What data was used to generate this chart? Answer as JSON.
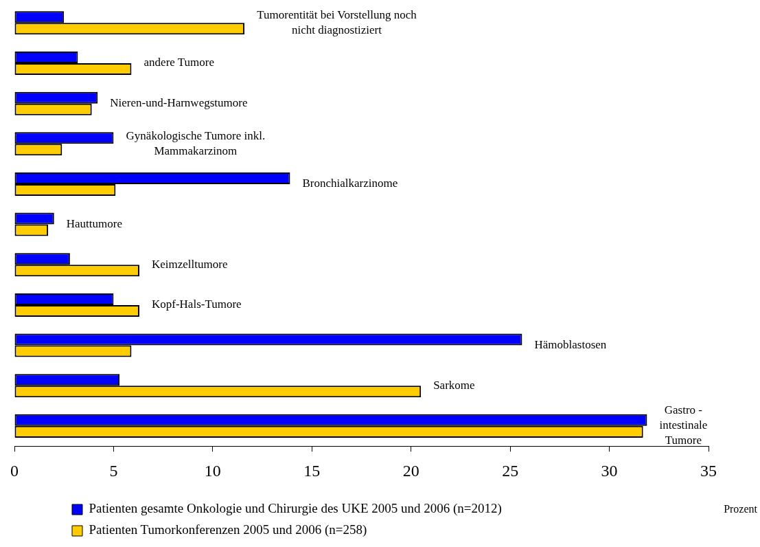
{
  "chart_data": {
    "type": "bar",
    "orientation": "horizontal",
    "xlabel": "Prozent",
    "categories": [
      "Tumorentität bei Vorstellung noch nicht diagnostiziert",
      "andere Tumore",
      "Nieren-und-Harnwegstumore",
      "Gynäkologische Tumore inkl. Mammakarzinom",
      "Bronchialkarzinome",
      "Hauttumore",
      "Keimzelltumore",
      "Kopf-Hals-Tumore",
      "Hämoblastosen",
      "Sarkome",
      "Gastro - intestinale Tumore"
    ],
    "series": [
      {
        "name": "Patienten gesamte Onkologie und Chirurgie des UKE 2005 und 2006 (n=2012)",
        "color": "#0000ff",
        "values": [
          2.5,
          3.2,
          4.2,
          5.0,
          13.9,
          2.0,
          2.8,
          5.0,
          25.6,
          5.3,
          31.9
        ]
      },
      {
        "name": "Patienten Tumorkonferenzen 2005 und 2006 (n=258)",
        "color": "#ffcc00",
        "values": [
          11.6,
          5.9,
          3.9,
          2.4,
          5.1,
          1.7,
          6.3,
          6.3,
          5.9,
          20.5,
          31.7
        ]
      }
    ],
    "xlim": [
      0,
      35
    ],
    "xticks": [
      0,
      5,
      10,
      15,
      20,
      25,
      30,
      35
    ],
    "legend": "bottom left"
  }
}
